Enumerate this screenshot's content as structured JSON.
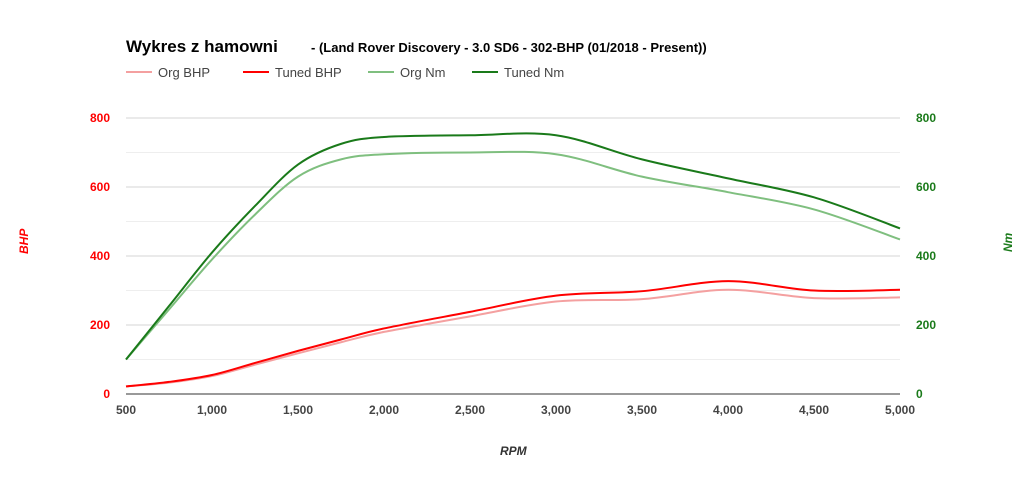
{
  "chart_data": {
    "type": "line",
    "title": "Wykres z hamowni",
    "subtitle": "- (Land Rover Discovery - 3.0 SD6 - 302-BHP (01/2018 - Present))",
    "xlabel": "RPM",
    "ylabel_left": "BHP",
    "ylabel_right": "Nm",
    "xlim": [
      500,
      5000
    ],
    "ylim_left": [
      0,
      800
    ],
    "ylim_right": [
      0,
      800
    ],
    "x_ticks": [
      "500",
      "1,000",
      "1,500",
      "2,000",
      "2,500",
      "3,000",
      "3,500",
      "4,000",
      "4,500",
      "5,000"
    ],
    "y_ticks_left": [
      "0",
      "200",
      "400",
      "600",
      "800"
    ],
    "y_ticks_right": [
      "0",
      "200",
      "400",
      "600",
      "800"
    ],
    "grid": true,
    "legend_position": "top-left",
    "x": [
      500,
      750,
      1000,
      1250,
      1500,
      1750,
      2000,
      2500,
      3000,
      3500,
      4000,
      4500,
      5000
    ],
    "series": [
      {
        "name": "Org BHP",
        "axis": "left",
        "color": "#f4a0a0",
        "values": [
          22,
          33,
          52,
          85,
          118,
          150,
          180,
          225,
          268,
          275,
          302,
          278,
          280
        ]
      },
      {
        "name": "Tuned BHP",
        "axis": "left",
        "color": "#ff0000",
        "values": [
          22,
          35,
          55,
          90,
          125,
          158,
          190,
          238,
          285,
          298,
          327,
          300,
          302
        ]
      },
      {
        "name": "Org Nm",
        "axis": "right",
        "color": "#7fbf7f",
        "values": [
          100,
          245,
          390,
          520,
          630,
          680,
          695,
          700,
          695,
          630,
          585,
          535,
          448
        ]
      },
      {
        "name": "Tuned Nm",
        "axis": "right",
        "color": "#1a7a1a",
        "values": [
          100,
          255,
          410,
          545,
          665,
          725,
          745,
          750,
          750,
          680,
          625,
          570,
          480
        ]
      }
    ],
    "left_axis_color": "#ff0000",
    "right_axis_color": "#1a7a1a"
  }
}
